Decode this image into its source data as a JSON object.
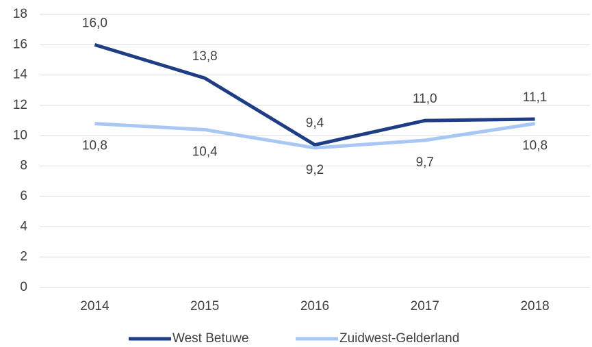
{
  "chart_data": {
    "type": "line",
    "categories": [
      "2014",
      "2015",
      "2016",
      "2017",
      "2018"
    ],
    "series": [
      {
        "name": "West Betuwe",
        "color": "#1f3d84",
        "values": [
          16.0,
          13.8,
          9.4,
          11.0,
          11.1
        ],
        "value_labels": [
          "16,0",
          "13,8",
          "9,4",
          "11,0",
          "11,1"
        ]
      },
      {
        "name": "Zuidwest-Gelderland",
        "color": "#a9c7f5",
        "values": [
          10.8,
          10.4,
          9.2,
          9.7,
          10.8
        ],
        "value_labels": [
          "10,8",
          "10,4",
          "9,2",
          "9,7",
          "10,8"
        ]
      }
    ],
    "ylim": [
      0,
      18
    ],
    "yticks": [
      0,
      2,
      4,
      6,
      8,
      10,
      12,
      14,
      16,
      18
    ],
    "grid": true,
    "legend": "bottom"
  }
}
